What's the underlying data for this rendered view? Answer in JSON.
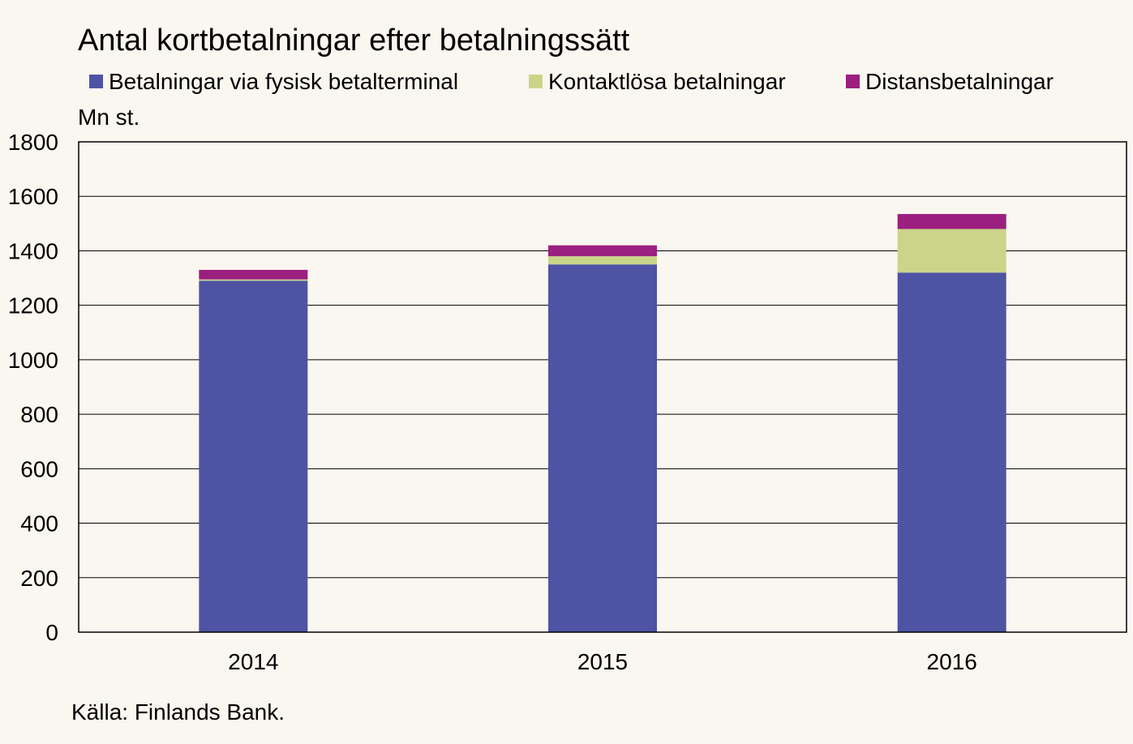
{
  "chart_data": {
    "type": "bar",
    "stacked": true,
    "title": "Antal kortbetalningar efter betalningssätt",
    "unit_label": "Mn st.",
    "xlabel": "",
    "ylabel": "",
    "categories": [
      "2014",
      "2015",
      "2016"
    ],
    "series": [
      {
        "name": "Betalningar via fysisk betalterminal",
        "color": "#4e54a3",
        "values": [
          1290,
          1350,
          1320
        ]
      },
      {
        "name": "Kontaktlösa betalningar",
        "color": "#cad589",
        "values": [
          5,
          30,
          160
        ]
      },
      {
        "name": "Distansbetalningar",
        "color": "#9b1f7e",
        "values": [
          35,
          40,
          55
        ]
      }
    ],
    "ylim": [
      0,
      1800
    ],
    "yticks": [
      0,
      200,
      400,
      600,
      800,
      1000,
      1200,
      1400,
      1600,
      1800
    ],
    "grid": true,
    "legend_position": "top",
    "source": "Källa: Finlands Bank."
  }
}
